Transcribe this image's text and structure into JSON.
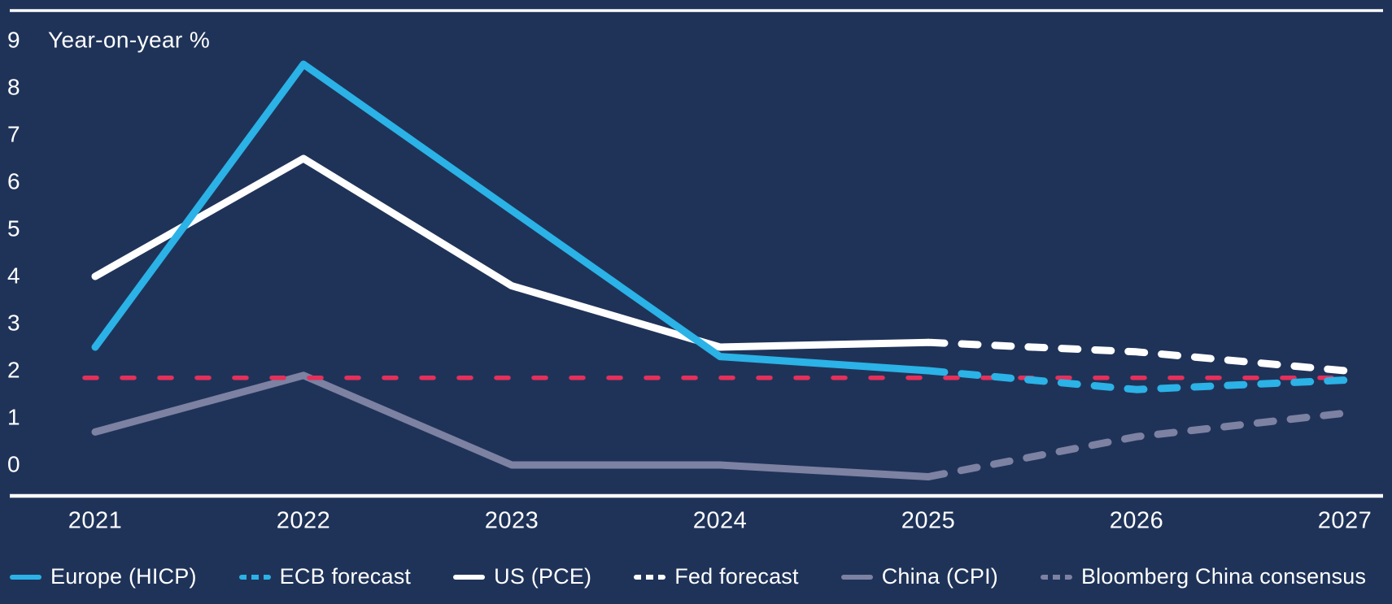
{
  "chart_data": {
    "type": "line",
    "title": "Year-on-year %",
    "x_labels": [
      "2021",
      "2022",
      "2023",
      "2024",
      "2025",
      "2026",
      "2027"
    ],
    "x_values": [
      2021,
      2022,
      2023,
      2024,
      2025,
      2026,
      2027
    ],
    "y_ticks": [
      0,
      1,
      2,
      3,
      4,
      5,
      6,
      7,
      8,
      9
    ],
    "ylim": [
      -0.7,
      9.7
    ],
    "grid": false,
    "legend_position": "bottom",
    "series": [
      {
        "name": "Europe (HICP)",
        "style": "solid",
        "color_key": "europe",
        "x": [
          2021,
          2022,
          2023,
          2024,
          2025
        ],
        "values": [
          2.5,
          8.5,
          5.4,
          2.3,
          2.0
        ]
      },
      {
        "name": "ECB forecast",
        "style": "dashed",
        "color_key": "europe",
        "x": [
          2025,
          2026,
          2027
        ],
        "values": [
          2.0,
          1.6,
          1.8
        ]
      },
      {
        "name": "US (PCE)",
        "style": "solid",
        "color_key": "us",
        "x": [
          2021,
          2022,
          2023,
          2024,
          2025
        ],
        "values": [
          4.0,
          6.5,
          3.8,
          2.5,
          2.6
        ]
      },
      {
        "name": "Fed forecast",
        "style": "dashed",
        "color_key": "us",
        "x": [
          2025,
          2026,
          2027
        ],
        "values": [
          2.6,
          2.4,
          2.0
        ]
      },
      {
        "name": "China (CPI)",
        "style": "solid",
        "color_key": "china",
        "x": [
          2021,
          2022,
          2023,
          2024,
          2025
        ],
        "values": [
          0.7,
          1.9,
          0.0,
          0.0,
          -0.25
        ]
      },
      {
        "name": "Bloomberg China consensus",
        "style": "dashed",
        "color_key": "china",
        "x": [
          2025,
          2026,
          2027
        ],
        "values": [
          -0.25,
          0.6,
          1.1
        ]
      }
    ],
    "reference_line": {
      "value": 1.85,
      "style": "dashed",
      "color_key": "reference"
    },
    "colors": {
      "background": "#1f3359",
      "axis": "#ffffff",
      "text": "#ffffff",
      "europe": "#2bb2e6",
      "us": "#ffffff",
      "china": "#7d81a2",
      "reference": "#e4305a"
    }
  }
}
